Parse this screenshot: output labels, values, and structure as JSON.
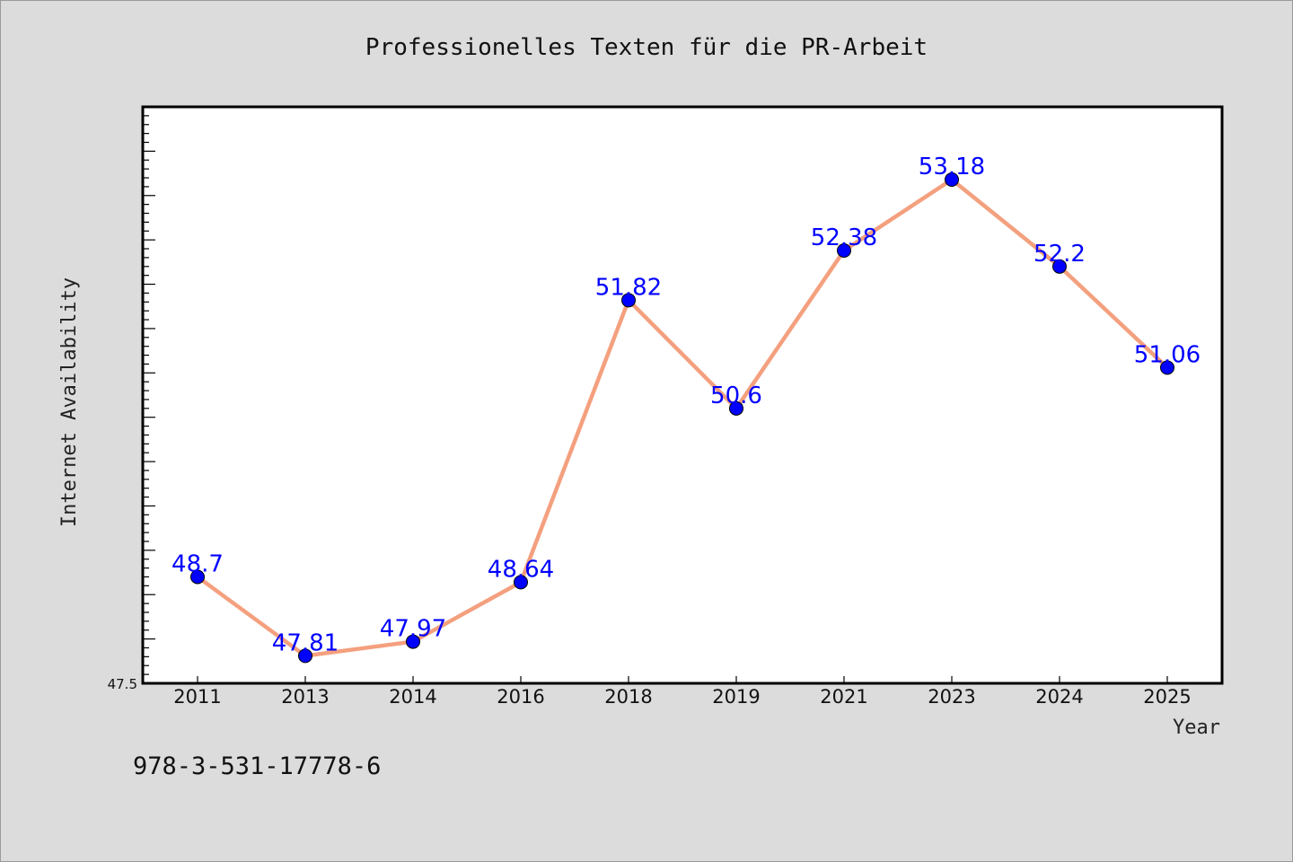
{
  "chart_data": {
    "type": "line",
    "title": "Professionelles Texten für die PR-Arbeit",
    "xlabel": "Year",
    "ylabel": "Internet Availability",
    "categories": [
      "2011",
      "2013",
      "2014",
      "2016",
      "2018",
      "2019",
      "2021",
      "2023",
      "2024",
      "2025"
    ],
    "series": [
      {
        "values": [
          48.7,
          47.81,
          47.97,
          48.64,
          51.82,
          50.6,
          52.38,
          53.18,
          52.2,
          51.06
        ],
        "labels": [
          "48.7",
          "47.81",
          "47.97",
          "48.64",
          "51.82",
          "50.6",
          "52.38",
          "53.18",
          "52.2",
          "51.06"
        ]
      }
    ],
    "ylim": [
      47.5,
      54.0
    ],
    "yticks_labeled": [
      "47.5"
    ],
    "grid": false,
    "line_color": "#f4a07e",
    "marker_color": "#0000ff",
    "label_color": "#0000ff"
  },
  "footer_text": "978-3-531-17778-6"
}
